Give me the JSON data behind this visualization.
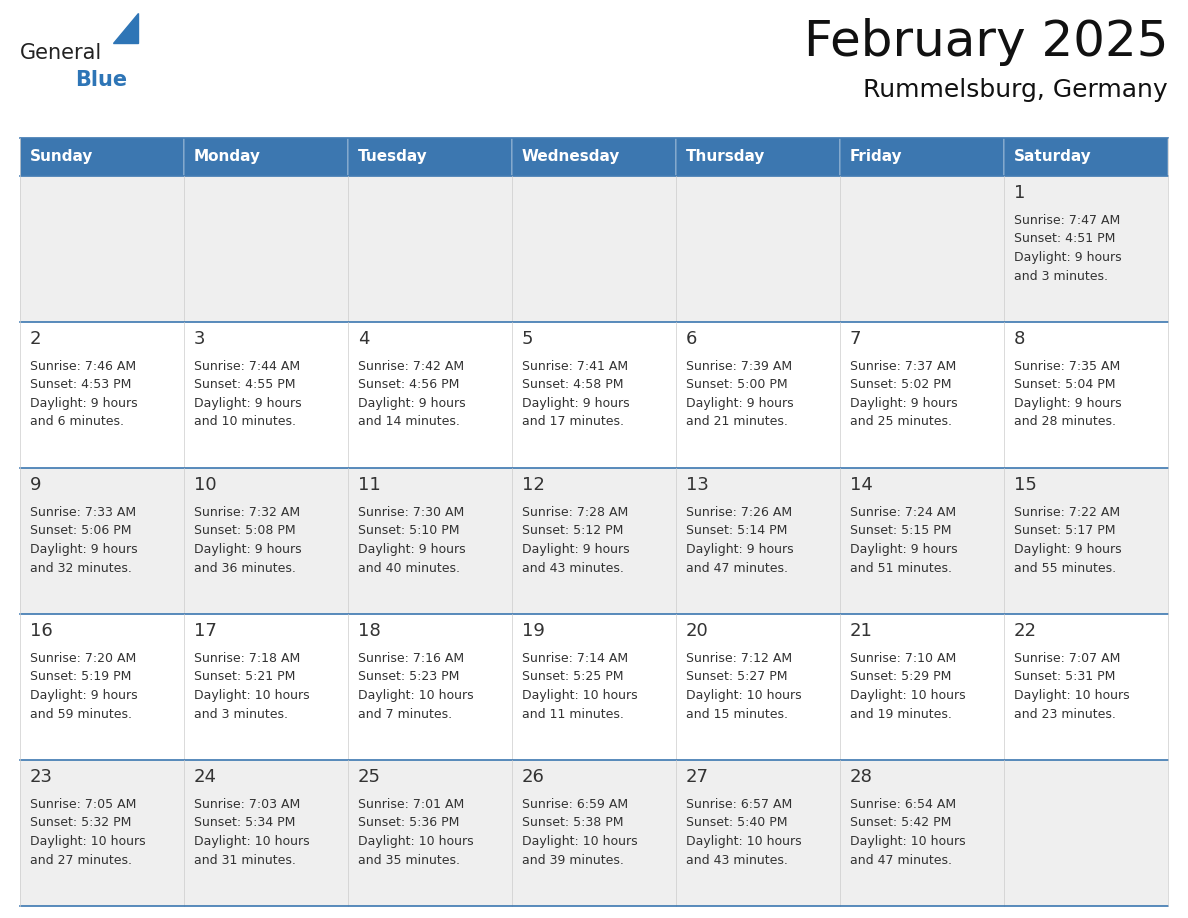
{
  "title": "February 2025",
  "subtitle": "Rummelsburg, Germany",
  "header_color": "#3C77B0",
  "header_text_color": "#FFFFFF",
  "day_names": [
    "Sunday",
    "Monday",
    "Tuesday",
    "Wednesday",
    "Thursday",
    "Friday",
    "Saturday"
  ],
  "row_bg_colors": [
    "#EFEFEF",
    "#FFFFFF",
    "#EFEFEF",
    "#FFFFFF",
    "#EFEFEF"
  ],
  "border_color": "#3C77B0",
  "number_color": "#333333",
  "text_color": "#333333",
  "weeks": [
    [
      {
        "day": null,
        "text": ""
      },
      {
        "day": null,
        "text": ""
      },
      {
        "day": null,
        "text": ""
      },
      {
        "day": null,
        "text": ""
      },
      {
        "day": null,
        "text": ""
      },
      {
        "day": null,
        "text": ""
      },
      {
        "day": 1,
        "text": "Sunrise: 7:47 AM\nSunset: 4:51 PM\nDaylight: 9 hours\nand 3 minutes."
      }
    ],
    [
      {
        "day": 2,
        "text": "Sunrise: 7:46 AM\nSunset: 4:53 PM\nDaylight: 9 hours\nand 6 minutes."
      },
      {
        "day": 3,
        "text": "Sunrise: 7:44 AM\nSunset: 4:55 PM\nDaylight: 9 hours\nand 10 minutes."
      },
      {
        "day": 4,
        "text": "Sunrise: 7:42 AM\nSunset: 4:56 PM\nDaylight: 9 hours\nand 14 minutes."
      },
      {
        "day": 5,
        "text": "Sunrise: 7:41 AM\nSunset: 4:58 PM\nDaylight: 9 hours\nand 17 minutes."
      },
      {
        "day": 6,
        "text": "Sunrise: 7:39 AM\nSunset: 5:00 PM\nDaylight: 9 hours\nand 21 minutes."
      },
      {
        "day": 7,
        "text": "Sunrise: 7:37 AM\nSunset: 5:02 PM\nDaylight: 9 hours\nand 25 minutes."
      },
      {
        "day": 8,
        "text": "Sunrise: 7:35 AM\nSunset: 5:04 PM\nDaylight: 9 hours\nand 28 minutes."
      }
    ],
    [
      {
        "day": 9,
        "text": "Sunrise: 7:33 AM\nSunset: 5:06 PM\nDaylight: 9 hours\nand 32 minutes."
      },
      {
        "day": 10,
        "text": "Sunrise: 7:32 AM\nSunset: 5:08 PM\nDaylight: 9 hours\nand 36 minutes."
      },
      {
        "day": 11,
        "text": "Sunrise: 7:30 AM\nSunset: 5:10 PM\nDaylight: 9 hours\nand 40 minutes."
      },
      {
        "day": 12,
        "text": "Sunrise: 7:28 AM\nSunset: 5:12 PM\nDaylight: 9 hours\nand 43 minutes."
      },
      {
        "day": 13,
        "text": "Sunrise: 7:26 AM\nSunset: 5:14 PM\nDaylight: 9 hours\nand 47 minutes."
      },
      {
        "day": 14,
        "text": "Sunrise: 7:24 AM\nSunset: 5:15 PM\nDaylight: 9 hours\nand 51 minutes."
      },
      {
        "day": 15,
        "text": "Sunrise: 7:22 AM\nSunset: 5:17 PM\nDaylight: 9 hours\nand 55 minutes."
      }
    ],
    [
      {
        "day": 16,
        "text": "Sunrise: 7:20 AM\nSunset: 5:19 PM\nDaylight: 9 hours\nand 59 minutes."
      },
      {
        "day": 17,
        "text": "Sunrise: 7:18 AM\nSunset: 5:21 PM\nDaylight: 10 hours\nand 3 minutes."
      },
      {
        "day": 18,
        "text": "Sunrise: 7:16 AM\nSunset: 5:23 PM\nDaylight: 10 hours\nand 7 minutes."
      },
      {
        "day": 19,
        "text": "Sunrise: 7:14 AM\nSunset: 5:25 PM\nDaylight: 10 hours\nand 11 minutes."
      },
      {
        "day": 20,
        "text": "Sunrise: 7:12 AM\nSunset: 5:27 PM\nDaylight: 10 hours\nand 15 minutes."
      },
      {
        "day": 21,
        "text": "Sunrise: 7:10 AM\nSunset: 5:29 PM\nDaylight: 10 hours\nand 19 minutes."
      },
      {
        "day": 22,
        "text": "Sunrise: 7:07 AM\nSunset: 5:31 PM\nDaylight: 10 hours\nand 23 minutes."
      }
    ],
    [
      {
        "day": 23,
        "text": "Sunrise: 7:05 AM\nSunset: 5:32 PM\nDaylight: 10 hours\nand 27 minutes."
      },
      {
        "day": 24,
        "text": "Sunrise: 7:03 AM\nSunset: 5:34 PM\nDaylight: 10 hours\nand 31 minutes."
      },
      {
        "day": 25,
        "text": "Sunrise: 7:01 AM\nSunset: 5:36 PM\nDaylight: 10 hours\nand 35 minutes."
      },
      {
        "day": 26,
        "text": "Sunrise: 6:59 AM\nSunset: 5:38 PM\nDaylight: 10 hours\nand 39 minutes."
      },
      {
        "day": 27,
        "text": "Sunrise: 6:57 AM\nSunset: 5:40 PM\nDaylight: 10 hours\nand 43 minutes."
      },
      {
        "day": 28,
        "text": "Sunrise: 6:54 AM\nSunset: 5:42 PM\nDaylight: 10 hours\nand 47 minutes."
      },
      {
        "day": null,
        "text": ""
      }
    ]
  ],
  "logo_text_general": "General",
  "logo_text_blue": "Blue",
  "logo_color_general": "#222222",
  "logo_color_blue": "#2E75B6",
  "logo_triangle_color": "#2E75B6",
  "title_fontsize": 36,
  "subtitle_fontsize": 18,
  "header_fontsize": 11,
  "day_number_fontsize": 13,
  "cell_text_fontsize": 9
}
